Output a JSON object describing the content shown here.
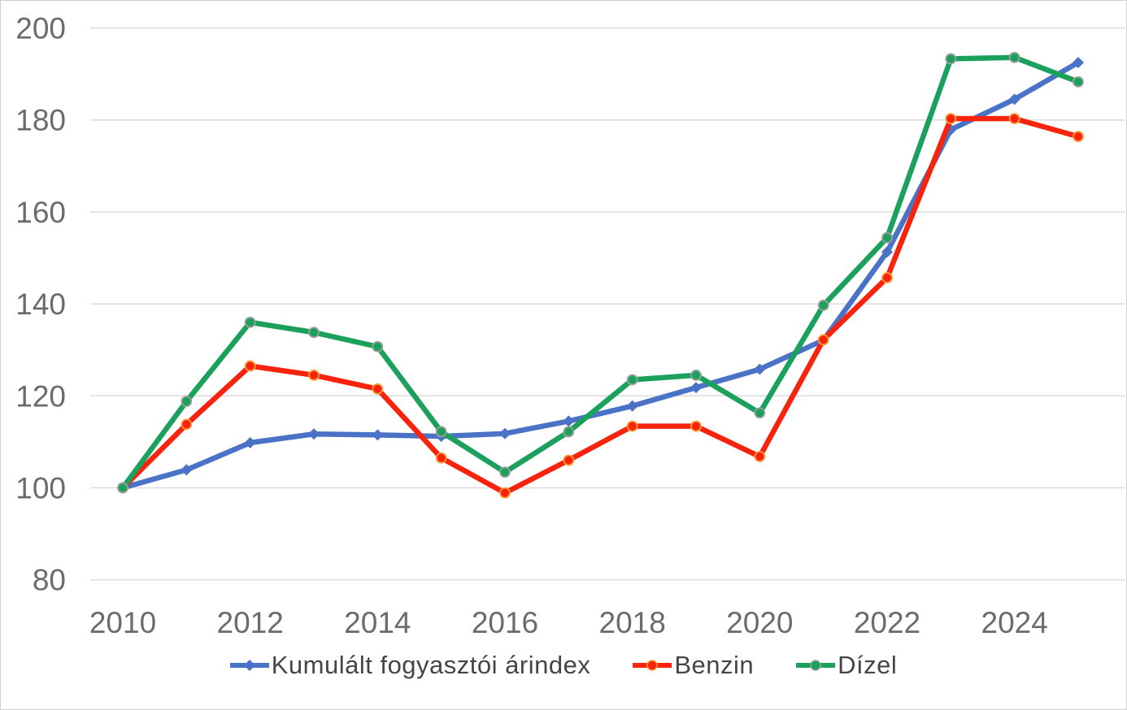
{
  "frame": {
    "background": "#ffffff",
    "border_color": "#cfcfcf"
  },
  "chart_data": {
    "type": "line",
    "title": "",
    "xlabel": "",
    "ylabel": "",
    "x": [
      2010,
      2011,
      2012,
      2013,
      2014,
      2015,
      2016,
      2017,
      2018,
      2019,
      2020,
      2021,
      2022,
      2023,
      2024,
      2025
    ],
    "x_tick_labels": [
      "2010",
      "2012",
      "2014",
      "2016",
      "2018",
      "2020",
      "2022",
      "2024"
    ],
    "x_tick_indices": [
      0,
      2,
      4,
      6,
      8,
      10,
      12,
      14
    ],
    "y_ticks": [
      80,
      100,
      120,
      140,
      160,
      180,
      200
    ],
    "ylim": [
      80,
      200
    ],
    "grid": "horizontal",
    "grid_color": "#dbdbdb",
    "tick_label_color": "#6b6b6b",
    "legend_position": "bottom",
    "series": [
      {
        "name": "Kumulált fogyasztói árindex",
        "color": "#4A72C6",
        "marker": "diamond",
        "marker_fill": "#4A72C6",
        "marker_stroke": "#4A72C6",
        "values": [
          100,
          103.9,
          109.8,
          111.7,
          111.5,
          111.2,
          111.8,
          114.5,
          117.8,
          121.8,
          125.8,
          132.1,
          151.3,
          177.9,
          184.5,
          192.5
        ]
      },
      {
        "name": "Benzin",
        "color": "#F8230D",
        "marker": "circle",
        "marker_fill": "#F8230D",
        "marker_stroke": "#FF9C33",
        "values": [
          100,
          113.8,
          126.5,
          124.5,
          121.5,
          106.5,
          98.9,
          106,
          113.4,
          113.4,
          106.8,
          132.2,
          145.7,
          180.3,
          180.3,
          176.4
        ]
      },
      {
        "name": "Dízel",
        "color": "#1CA15C",
        "marker": "circle",
        "marker_fill": "#1CA15C",
        "marker_stroke": "#9E9E9E",
        "values": [
          100,
          118.8,
          136,
          133.8,
          130.7,
          112.2,
          103.4,
          112.2,
          123.5,
          124.5,
          116.3,
          139.7,
          154.4,
          193.3,
          193.6,
          188.3
        ]
      }
    ]
  }
}
